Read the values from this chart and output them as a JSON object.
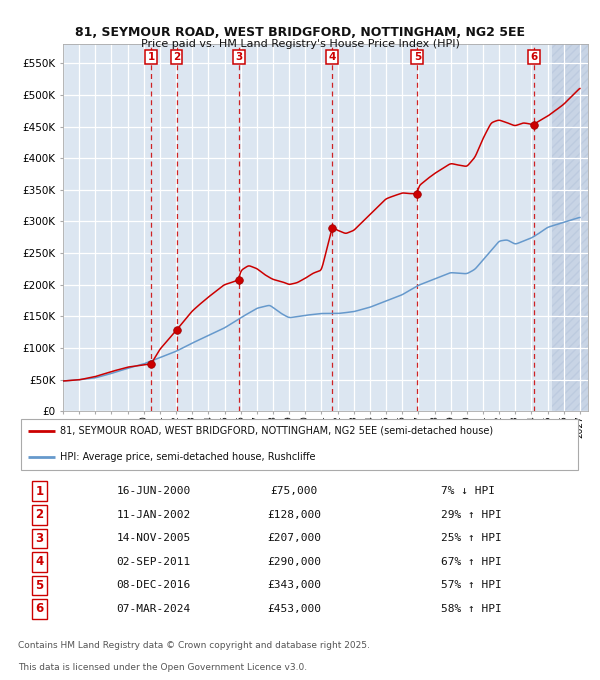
{
  "title1": "81, SEYMOUR ROAD, WEST BRIDGFORD, NOTTINGHAM, NG2 5EE",
  "title2": "Price paid vs. HM Land Registry's House Price Index (HPI)",
  "legend_line1": "81, SEYMOUR ROAD, WEST BRIDGFORD, NOTTINGHAM, NG2 5EE (semi-detached house)",
  "legend_line2": "HPI: Average price, semi-detached house, Rushcliffe",
  "footer1": "Contains HM Land Registry data © Crown copyright and database right 2025.",
  "footer2": "This data is licensed under the Open Government Licence v3.0.",
  "sale_events": [
    {
      "num": 1,
      "date_str": "16-JUN-2000",
      "price": 75000,
      "hpi_rel": "7% ↓ HPI",
      "year": 2000.46
    },
    {
      "num": 2,
      "date_str": "11-JAN-2002",
      "price": 128000,
      "hpi_rel": "29% ↑ HPI",
      "year": 2002.03
    },
    {
      "num": 3,
      "date_str": "14-NOV-2005",
      "price": 207000,
      "hpi_rel": "25% ↑ HPI",
      "year": 2005.87
    },
    {
      "num": 4,
      "date_str": "02-SEP-2011",
      "price": 290000,
      "hpi_rel": "67% ↑ HPI",
      "year": 2011.67
    },
    {
      "num": 5,
      "date_str": "08-DEC-2016",
      "price": 343000,
      "hpi_rel": "57% ↑ HPI",
      "year": 2016.94
    },
    {
      "num": 6,
      "date_str": "07-MAR-2024",
      "price": 453000,
      "hpi_rel": "58% ↑ HPI",
      "year": 2024.18
    }
  ],
  "table_rows": [
    {
      "num": 1,
      "date": "16-JUN-2000",
      "price": "£75,000",
      "rel": "7% ↓ HPI"
    },
    {
      "num": 2,
      "date": "11-JAN-2002",
      "price": "£128,000",
      "rel": "29% ↑ HPI"
    },
    {
      "num": 3,
      "date": "14-NOV-2005",
      "price": "£207,000",
      "rel": "25% ↑ HPI"
    },
    {
      "num": 4,
      "date": "02-SEP-2011",
      "price": "£290,000",
      "rel": "67% ↑ HPI"
    },
    {
      "num": 5,
      "date": "08-DEC-2016",
      "price": "£343,000",
      "rel": "57% ↑ HPI"
    },
    {
      "num": 6,
      "date": "07-MAR-2024",
      "price": "£453,000",
      "rel": "58% ↑ HPI"
    }
  ],
  "property_color": "#cc0000",
  "hpi_color": "#6699cc",
  "bg_color": "#dce6f1",
  "grid_color": "#ffffff",
  "vline_color": "#cc0000",
  "ylim": [
    0,
    580000
  ],
  "xlim": [
    1995.0,
    2027.5
  ],
  "yticks": [
    0,
    50000,
    100000,
    150000,
    200000,
    250000,
    300000,
    350000,
    400000,
    450000,
    500000,
    550000
  ],
  "xticks": [
    1995,
    1996,
    1997,
    1998,
    1999,
    2000,
    2001,
    2002,
    2003,
    2004,
    2005,
    2006,
    2007,
    2008,
    2009,
    2010,
    2011,
    2012,
    2013,
    2014,
    2015,
    2016,
    2017,
    2018,
    2019,
    2020,
    2021,
    2022,
    2023,
    2024,
    2025,
    2026,
    2027
  ],
  "hpi_anchors_year": [
    1995.0,
    1996.0,
    1997.0,
    1998.0,
    1999.0,
    2000.0,
    2001.0,
    2002.0,
    2003.0,
    2004.0,
    2005.0,
    2006.0,
    2007.0,
    2007.8,
    2008.5,
    2009.0,
    2009.5,
    2010.0,
    2011.0,
    2012.0,
    2013.0,
    2014.0,
    2015.0,
    2016.0,
    2017.0,
    2018.0,
    2019.0,
    2020.0,
    2020.5,
    2021.0,
    2021.5,
    2022.0,
    2022.5,
    2023.0,
    2023.5,
    2024.0,
    2024.5,
    2025.0,
    2026.0,
    2027.0
  ],
  "hpi_anchors_val": [
    48000,
    50000,
    53000,
    60000,
    68000,
    75000,
    85000,
    95000,
    108000,
    120000,
    132000,
    148000,
    163000,
    168000,
    155000,
    148000,
    150000,
    152000,
    155000,
    155000,
    158000,
    165000,
    175000,
    185000,
    200000,
    210000,
    220000,
    218000,
    225000,
    240000,
    255000,
    270000,
    272000,
    265000,
    270000,
    275000,
    283000,
    292000,
    300000,
    308000
  ],
  "prop_anchors_year": [
    1995.0,
    1996.0,
    1997.0,
    1998.0,
    1999.0,
    2000.46,
    2001.0,
    2002.03,
    2003.0,
    2004.0,
    2005.0,
    2005.87,
    2006.0,
    2006.5,
    2007.0,
    2007.5,
    2008.0,
    2008.5,
    2009.0,
    2009.5,
    2010.0,
    2010.5,
    2011.0,
    2011.67,
    2012.0,
    2012.5,
    2013.0,
    2014.0,
    2015.0,
    2016.0,
    2016.94,
    2017.0,
    2018.0,
    2019.0,
    2020.0,
    2020.5,
    2021.0,
    2021.5,
    2022.0,
    2022.5,
    2023.0,
    2023.5,
    2024.0,
    2024.18,
    2024.5,
    2025.0,
    2025.5,
    2026.0,
    2027.0
  ],
  "prop_anchors_val": [
    48000,
    50000,
    55000,
    63000,
    70000,
    75000,
    98000,
    128000,
    158000,
    180000,
    200000,
    207000,
    222000,
    230000,
    225000,
    215000,
    208000,
    205000,
    200000,
    203000,
    210000,
    218000,
    222000,
    290000,
    285000,
    280000,
    285000,
    310000,
    335000,
    345000,
    343000,
    355000,
    375000,
    390000,
    385000,
    400000,
    430000,
    455000,
    460000,
    455000,
    450000,
    455000,
    452000,
    453000,
    458000,
    465000,
    475000,
    485000,
    510000
  ],
  "future_x": 2025.3,
  "hatch_color": "#b0c0d8"
}
